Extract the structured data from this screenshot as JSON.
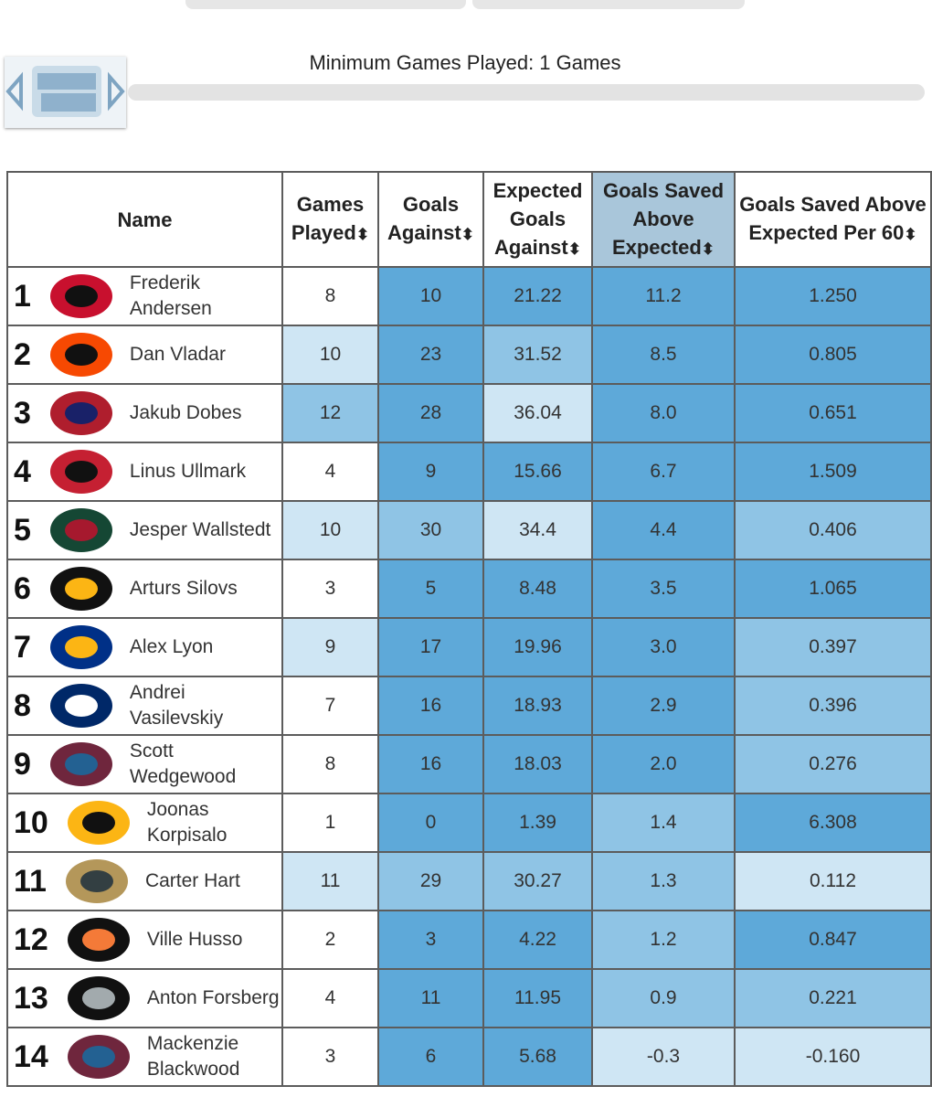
{
  "filter": {
    "label": "Minimum Games Played: 1 Games"
  },
  "table": {
    "columns": [
      "Name",
      "Games Played",
      "Goals Against",
      "Expected Goals Against",
      "Goals Saved Above Expected",
      "Goals Saved Above Expected Per 60"
    ],
    "rows": [
      [
        "1",
        "Frederik Andersen",
        "8",
        "10",
        "21.22",
        "11.2",
        "1.250"
      ],
      [
        "2",
        "Dan Vladar",
        "10",
        "23",
        "31.52",
        "8.5",
        "0.805"
      ],
      [
        "3",
        "Jakub Dobes",
        "12",
        "28",
        "36.04",
        "8.0",
        "0.651"
      ],
      [
        "4",
        "Linus Ullmark",
        "4",
        "9",
        "15.66",
        "6.7",
        "1.509"
      ],
      [
        "5",
        "Jesper Wallstedt",
        "10",
        "30",
        "34.4",
        "4.4",
        "0.406"
      ],
      [
        "6",
        "Arturs Silovs",
        "3",
        "5",
        "8.48",
        "3.5",
        "1.065"
      ],
      [
        "7",
        "Alex Lyon",
        "9",
        "17",
        "19.96",
        "3.0",
        "0.397"
      ],
      [
        "8",
        "Andrei Vasilevskiy",
        "7",
        "16",
        "18.93",
        "2.9",
        "0.396"
      ],
      [
        "9",
        "Scott Wedgewood",
        "8",
        "16",
        "18.03",
        "2.0",
        "0.276"
      ],
      [
        "10",
        "Joonas Korpisalo",
        "1",
        "0",
        "1.39",
        "1.4",
        "6.308"
      ],
      [
        "11",
        "Carter Hart",
        "11",
        "29",
        "30.27",
        "1.3",
        "0.112"
      ],
      [
        "12",
        "Ville Husso",
        "2",
        "3",
        "4.22",
        "1.2",
        "0.847"
      ],
      [
        "13",
        "Anton Forsberg",
        "4",
        "11",
        "11.95",
        "0.9",
        "0.221"
      ],
      [
        "14",
        "Mackenzie Blackwood",
        "3",
        "6",
        "5.68",
        "-0.3",
        "-0.160"
      ]
    ]
  }
}
